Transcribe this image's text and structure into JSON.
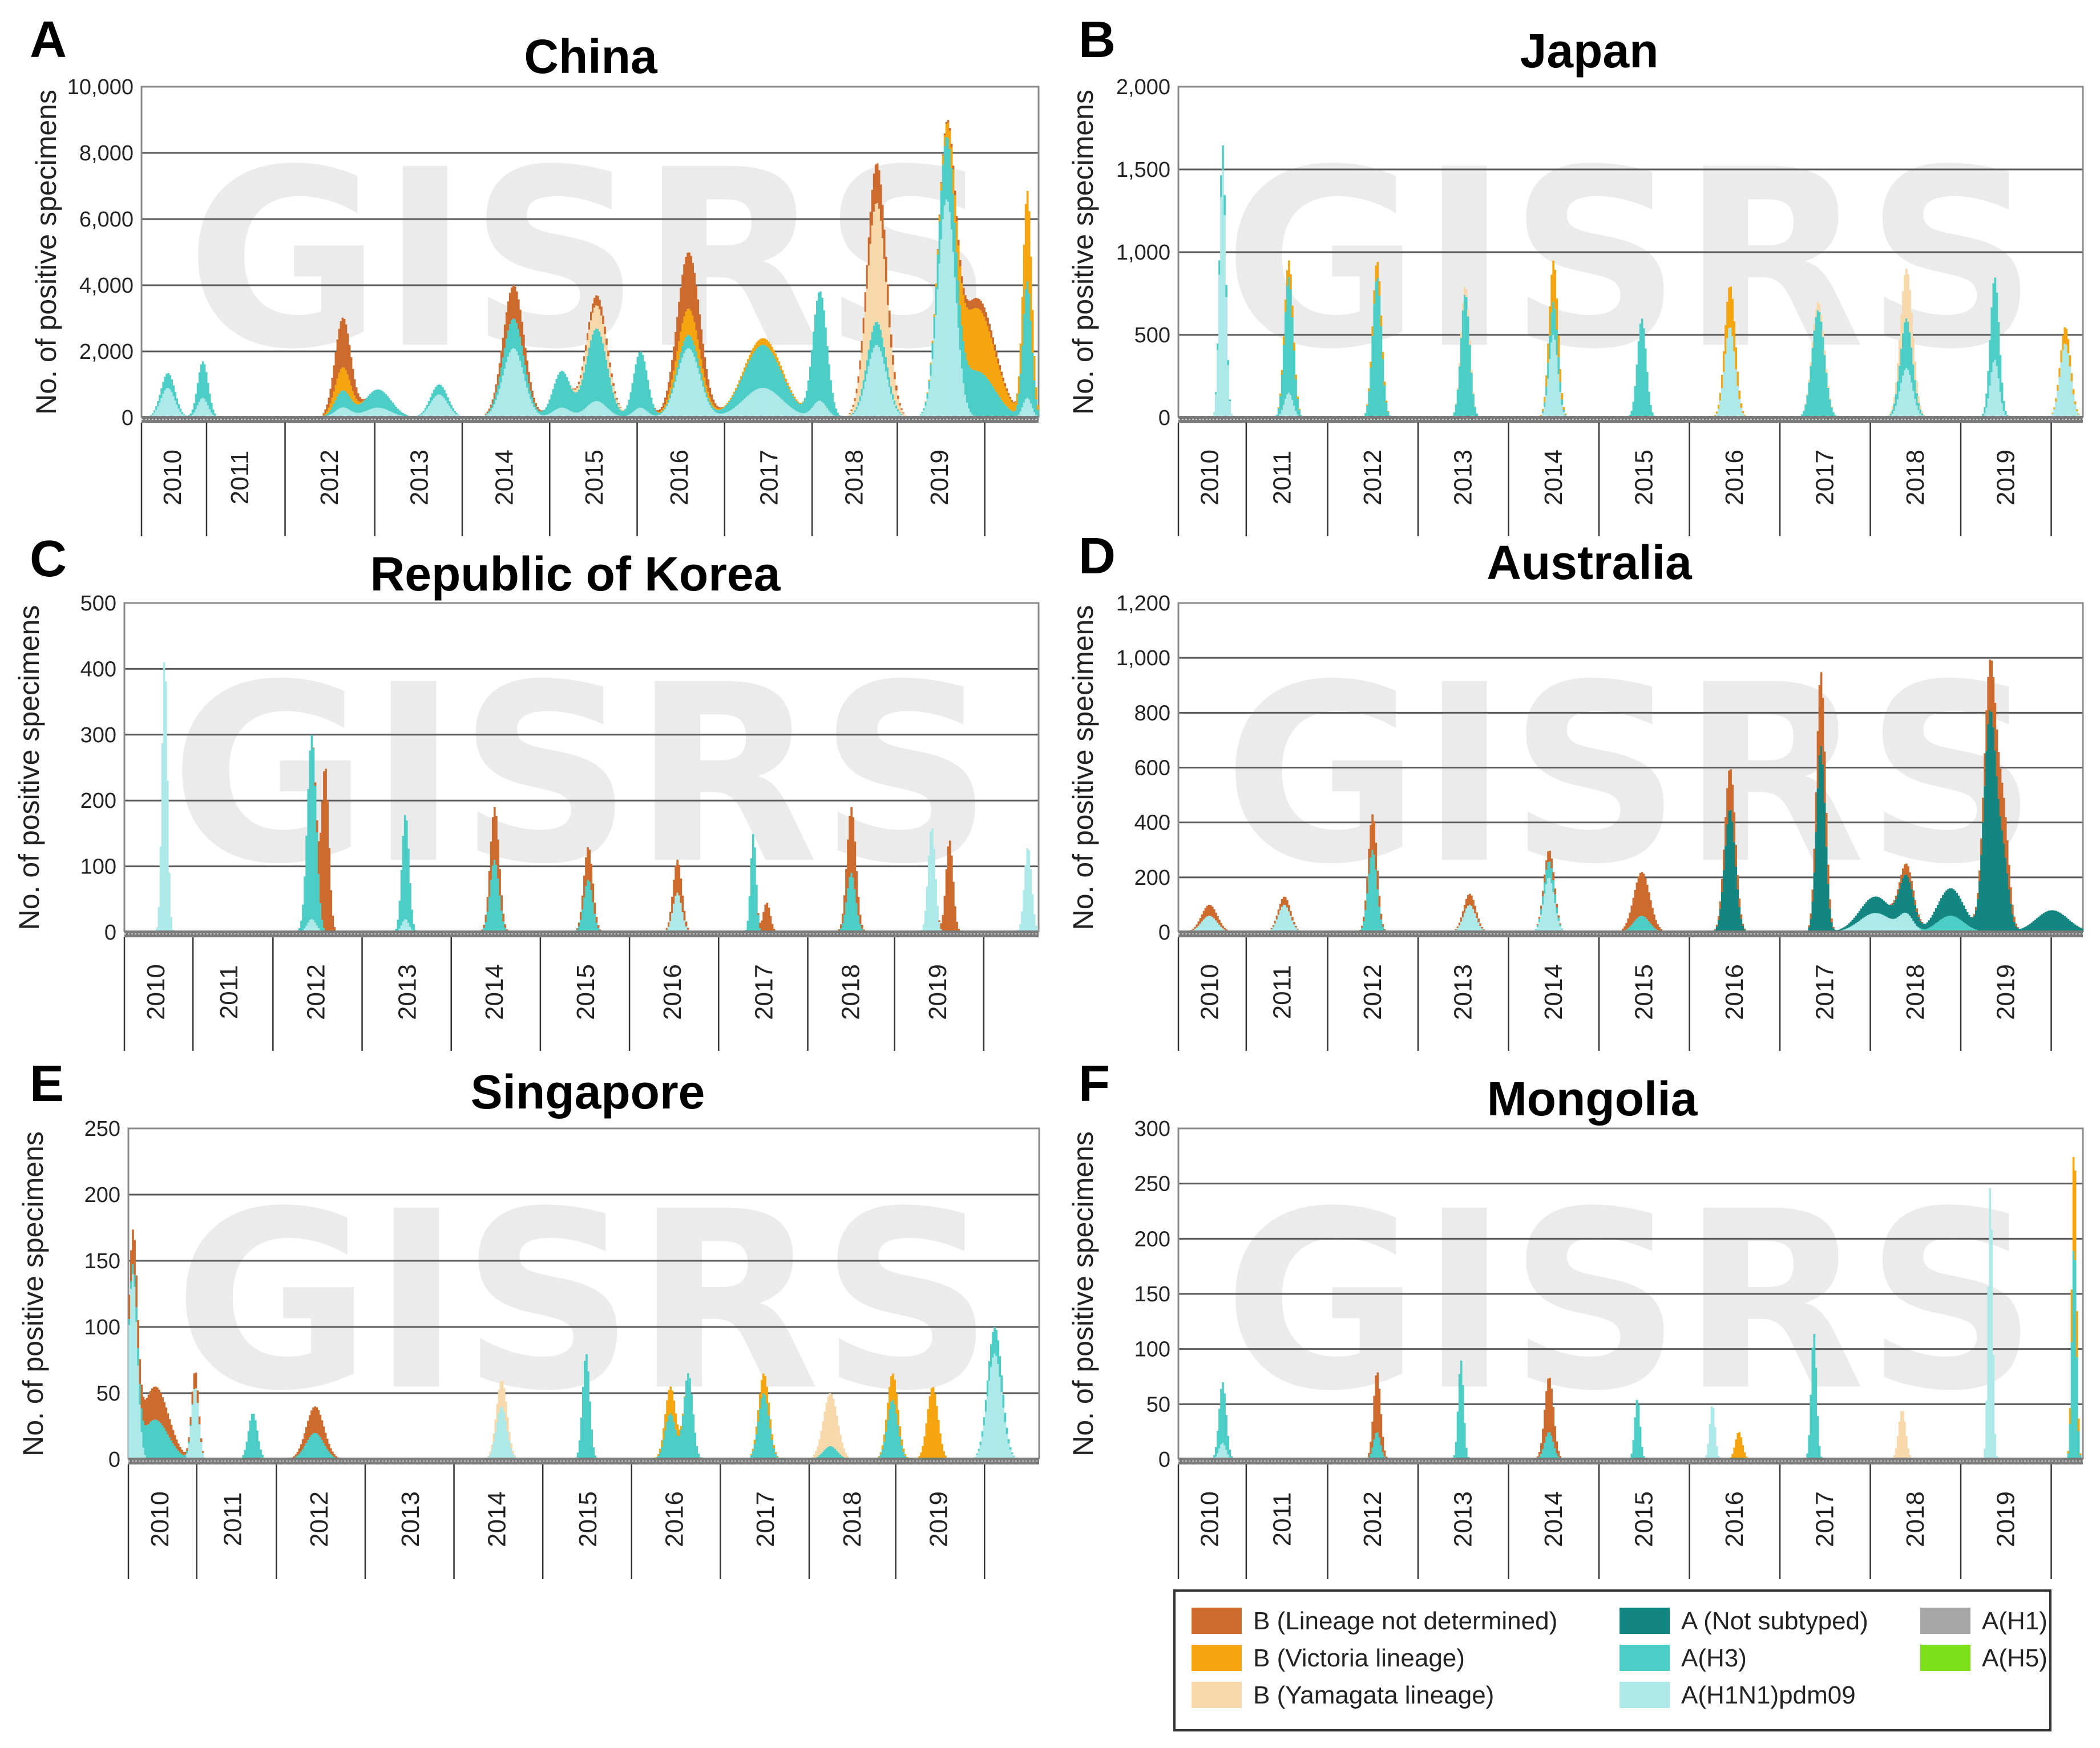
{
  "series_colors": {
    "B (Lineage not determined)": "#cd6a2d",
    "B (Victoria lineage)": "#f5a50f",
    "B (Yamagata lineage)": "#f8d9ac",
    "A (Not subtyped)": "#148682",
    "A(H3)": "#4ccdc6",
    "A(H1N1)pdm09": "#aee9ea",
    "A(H1)": "#a6a6a6",
    "A(H5)": "#7ee01a"
  },
  "legend": [
    {
      "label": "B (Lineage not determined)",
      "color": "#cd6a2d"
    },
    {
      "label": "B (Victoria lineage)",
      "color": "#f5a50f"
    },
    {
      "label": "B (Yamagata lineage)",
      "color": "#f8d9ac"
    },
    {
      "label": "A (Not subtyped)",
      "color": "#148682"
    },
    {
      "label": "A(H3)",
      "color": "#4ccdc6"
    },
    {
      "label": "A(H1N1)pdm09",
      "color": "#aee9ea"
    },
    {
      "label": "A(H1)",
      "color": "#a6a6a6"
    },
    {
      "label": "A(H5)",
      "color": "#7ee01a"
    }
  ],
  "chart_data": [
    {
      "panel": "A",
      "title": "China",
      "type": "area",
      "stacked": true,
      "ylabel": "No. of positive specimens",
      "ylim": [
        0,
        10000
      ],
      "yticks": [
        0,
        2000,
        4000,
        6000,
        8000,
        10000
      ],
      "ytick_labels": [
        "0",
        "2,000",
        "4,000",
        "6,000",
        "8,000",
        "10,000"
      ],
      "years": [
        "2010",
        "2011",
        "2012",
        "2013",
        "2014",
        "2015",
        "2016",
        "2017",
        "2018",
        "2019"
      ],
      "peaks": [
        {
          "t": 2010.1,
          "w": 0.08,
          "v": {
            "A(H1N1)pdm09": 900,
            "A(H3)": 450
          }
        },
        {
          "t": 2010.5,
          "w": 0.06,
          "v": {
            "A(H3)": 1100,
            "A(H1N1)pdm09": 600
          }
        },
        {
          "t": 2012.1,
          "w": 0.09,
          "v": {
            "B (Lineage not determined)": 1500,
            "B (Victoria lineage)": 700,
            "A(H3)": 500,
            "A(H1N1)pdm09": 300
          }
        },
        {
          "t": 2012.5,
          "w": 0.15,
          "v": {
            "A(H3)": 550,
            "A(H1N1)pdm09": 300
          }
        },
        {
          "t": 2013.2,
          "w": 0.1,
          "v": {
            "A(H1N1)pdm09": 700,
            "A(H3)": 300
          }
        },
        {
          "t": 2014.05,
          "w": 0.12,
          "v": {
            "A(H1N1)pdm09": 2100,
            "A(H3)": 900,
            "B (Lineage not determined)": 1000
          }
        },
        {
          "t": 2014.6,
          "w": 0.1,
          "v": {
            "A(H3)": 1100,
            "A(H1N1)pdm09": 300
          }
        },
        {
          "t": 2015.0,
          "w": 0.12,
          "v": {
            "A(H3)": 2200,
            "A(H1N1)pdm09": 500,
            "B (Yamagata lineage)": 700,
            "B (Lineage not determined)": 300
          }
        },
        {
          "t": 2015.5,
          "w": 0.08,
          "v": {
            "A(H3)": 1700,
            "A(H1N1)pdm09": 300
          }
        },
        {
          "t": 2016.05,
          "w": 0.13,
          "v": {
            "A(H1N1)pdm09": 2100,
            "A(H3)": 400,
            "B (Victoria lineage)": 800,
            "B (Lineage not determined)": 1700
          }
        },
        {
          "t": 2016.9,
          "w": 0.22,
          "v": {
            "A(H3)": 1300,
            "A(H1N1)pdm09": 900,
            "B (Victoria lineage)": 200
          }
        },
        {
          "t": 2017.55,
          "w": 0.08,
          "v": {
            "A(H3)": 3300,
            "A(H1N1)pdm09": 500
          }
        },
        {
          "t": 2018.2,
          "w": 0.11,
          "v": {
            "A(H1N1)pdm09": 2200,
            "A(H3)": 700,
            "B (Yamagata lineage)": 3600,
            "B (Lineage not determined)": 1200
          }
        },
        {
          "t": 2019.0,
          "w": 0.1,
          "v": {
            "A(H1N1)pdm09": 6600,
            "A(H3)": 1600
          }
        },
        {
          "t": 2019.35,
          "w": 0.2,
          "v": {
            "A(H3)": 1400,
            "B (Victoria lineage)": 1900,
            "B (Lineage not determined)": 300
          }
        },
        {
          "t": 2019.92,
          "w": 0.05,
          "v": {
            "A(H3)": 3500,
            "A(H1N1)pdm09": 600,
            "B (Victoria lineage)": 2700
          }
        }
      ]
    },
    {
      "panel": "B",
      "title": "Japan",
      "type": "area",
      "stacked": true,
      "ylabel": "No. of positive specimens",
      "ylim": [
        0,
        2000
      ],
      "yticks": [
        0,
        500,
        1000,
        1500,
        2000
      ],
      "ytick_labels": [
        "0",
        "500",
        "1,000",
        "1,500",
        "2,000"
      ],
      "years": [
        "2010",
        "2011",
        "2012",
        "2013",
        "2014",
        "2015",
        "2016",
        "2017",
        "2018",
        "2019"
      ],
      "peaks": [
        {
          "t": 2010.3,
          "w": 0.035,
          "v": {
            "A(H1N1)pdm09": 1500,
            "A(H3)": 150
          }
        },
        {
          "t": 2011.05,
          "w": 0.05,
          "v": {
            "A(H3)": 700,
            "A(H1N1)pdm09": 150,
            "B (Victoria lineage)": 100
          }
        },
        {
          "t": 2012.05,
          "w": 0.05,
          "v": {
            "A(H3)": 850,
            "B (Victoria lineage)": 100
          }
        },
        {
          "t": 2013.05,
          "w": 0.05,
          "v": {
            "A(H3)": 750,
            "B (Yamagata lineage)": 50
          }
        },
        {
          "t": 2014.05,
          "w": 0.05,
          "v": {
            "A(H1N1)pdm09": 500,
            "A(H3)": 200,
            "B (Victoria lineage)": 250
          }
        },
        {
          "t": 2015.05,
          "w": 0.05,
          "v": {
            "A(H3)": 600
          }
        },
        {
          "t": 2016.05,
          "w": 0.06,
          "v": {
            "A(H1N1)pdm09": 550,
            "B (Victoria lineage)": 250
          }
        },
        {
          "t": 2017.05,
          "w": 0.07,
          "v": {
            "A(H3)": 650,
            "B (Yamagata lineage)": 50
          }
        },
        {
          "t": 2018.05,
          "w": 0.07,
          "v": {
            "A(H1N1)pdm09": 300,
            "A(H3)": 300,
            "B (Yamagata lineage)": 300
          }
        },
        {
          "t": 2019.05,
          "w": 0.05,
          "v": {
            "A(H1N1)pdm09": 350,
            "A(H3)": 500
          }
        },
        {
          "t": 2019.85,
          "w": 0.06,
          "v": {
            "A(H1N1)pdm09": 450,
            "B (Victoria lineage)": 100
          }
        }
      ]
    },
    {
      "panel": "C",
      "title": "Republic of Korea",
      "type": "area",
      "stacked": true,
      "ylabel": "No. of positive specimens",
      "ylim": [
        0,
        500
      ],
      "yticks": [
        0,
        100,
        200,
        300,
        400,
        500
      ],
      "ytick_labels": [
        "0",
        "100",
        "200",
        "300",
        "400",
        "500"
      ],
      "years": [
        "2010",
        "2011",
        "2012",
        "2013",
        "2014",
        "2015",
        "2016",
        "2017",
        "2018",
        "2019"
      ],
      "peaks": [
        {
          "t": 2010.25,
          "w": 0.03,
          "v": {
            "A(H1N1)pdm09": 420
          }
        },
        {
          "t": 2011.9,
          "w": 0.05,
          "v": {
            "A(H3)": 280,
            "A(H1N1)pdm09": 20
          }
        },
        {
          "t": 2012.05,
          "w": 0.04,
          "v": {
            "B (Lineage not determined)": 250
          }
        },
        {
          "t": 2012.95,
          "w": 0.04,
          "v": {
            "A(H3)": 160,
            "A(H1N1)pdm09": 20
          }
        },
        {
          "t": 2013.95,
          "w": 0.05,
          "v": {
            "A(H3)": 110,
            "B (Lineage not determined)": 80
          }
        },
        {
          "t": 2015.0,
          "w": 0.05,
          "v": {
            "A(H3)": 80,
            "B (Lineage not determined)": 50
          }
        },
        {
          "t": 2016.0,
          "w": 0.05,
          "v": {
            "A(H1N1)pdm09": 60,
            "B (Lineage not determined)": 50
          }
        },
        {
          "t": 2016.85,
          "w": 0.03,
          "v": {
            "A(H3)": 150
          }
        },
        {
          "t": 2017.0,
          "w": 0.04,
          "v": {
            "B (Lineage not determined)": 45
          }
        },
        {
          "t": 2017.95,
          "w": 0.05,
          "v": {
            "A(H3)": 90,
            "B (Lineage not determined)": 100
          }
        },
        {
          "t": 2018.85,
          "w": 0.04,
          "v": {
            "A(H1N1)pdm09": 160
          }
        },
        {
          "t": 2019.05,
          "w": 0.04,
          "v": {
            "B (Lineage not determined)": 140
          }
        },
        {
          "t": 2019.93,
          "w": 0.04,
          "v": {
            "A(H1N1)pdm09": 130
          }
        }
      ]
    },
    {
      "panel": "D",
      "title": "Australia",
      "type": "area",
      "stacked": true,
      "ylabel": "No. of positive specimens",
      "ylim": [
        0,
        1200
      ],
      "yticks": [
        0,
        200,
        400,
        600,
        800,
        1000,
        1200
      ],
      "ytick_labels": [
        "0",
        "200",
        "400",
        "600",
        "800",
        "1,000",
        "1,200"
      ],
      "years": [
        "2010",
        "2011",
        "2012",
        "2013",
        "2014",
        "2015",
        "2016",
        "2017",
        "2018",
        "2019"
      ],
      "peaks": [
        {
          "t": 2010.15,
          "w": 0.09,
          "v": {
            "A(H1N1)pdm09": 60,
            "B (Lineage not determined)": 40
          }
        },
        {
          "t": 2011.0,
          "w": 0.07,
          "v": {
            "A(H1N1)pdm09": 100,
            "B (Lineage not determined)": 30
          }
        },
        {
          "t": 2012.0,
          "w": 0.05,
          "v": {
            "A(H3)": 300,
            "B (Lineage not determined)": 130
          }
        },
        {
          "t": 2013.1,
          "w": 0.07,
          "v": {
            "A(H1N1)pdm09": 100,
            "B (Lineage not determined)": 40
          }
        },
        {
          "t": 2014.0,
          "w": 0.06,
          "v": {
            "A(H1N1)pdm09": 200,
            "A(H3)": 60,
            "B (Lineage not determined)": 40
          }
        },
        {
          "t": 2015.05,
          "w": 0.09,
          "v": {
            "A(H3)": 60,
            "B (Lineage not determined)": 160
          }
        },
        {
          "t": 2016.05,
          "w": 0.06,
          "v": {
            "A (Not subtyped)": 450,
            "B (Lineage not determined)": 150
          }
        },
        {
          "t": 2017.08,
          "w": 0.05,
          "v": {
            "A (Not subtyped)": 680,
            "B (Lineage not determined)": 270
          }
        },
        {
          "t": 2017.7,
          "w": 0.18,
          "v": {
            "A (Not subtyped)": 60,
            "A(H1N1)pdm09": 70
          }
        },
        {
          "t": 2018.05,
          "w": 0.08,
          "v": {
            "A (Not subtyped)": 130,
            "A(H1N1)pdm09": 60,
            "B (Lineage not determined)": 40
          }
        },
        {
          "t": 2018.55,
          "w": 0.15,
          "v": {
            "A (Not subtyped)": 100,
            "A(H3)": 60
          }
        },
        {
          "t": 2019.0,
          "w": 0.07,
          "v": {
            "A (Not subtyped)": 800,
            "B (Lineage not determined)": 180
          }
        },
        {
          "t": 2019.15,
          "w": 0.06,
          "v": {
            "A (Not subtyped)": 250,
            "B (Lineage not determined)": 150
          }
        },
        {
          "t": 2019.7,
          "w": 0.18,
          "v": {
            "A (Not subtyped)": 80
          }
        }
      ]
    },
    {
      "panel": "E",
      "title": "Singapore",
      "type": "area",
      "stacked": true,
      "ylabel": "No. of positive specimens",
      "ylim": [
        0,
        250
      ],
      "yticks": [
        0,
        50,
        100,
        150,
        200,
        250
      ],
      "ytick_labels": [
        "0",
        "50",
        "100",
        "150",
        "200",
        "250"
      ],
      "years": [
        "2010",
        "2011",
        "2012",
        "2013",
        "2014",
        "2015",
        "2016",
        "2017",
        "2018",
        "2019"
      ],
      "peaks": [
        {
          "t": 2009.85,
          "w": 0.05,
          "v": {
            "A(H1N1)pdm09": 140,
            "B (Lineage not determined)": 20
          }
        },
        {
          "t": 2010.1,
          "w": 0.15,
          "v": {
            "A(H3)": 30,
            "B (Lineage not determined)": 25
          }
        },
        {
          "t": 2010.55,
          "w": 0.04,
          "v": {
            "A(H1N1)pdm09": 55,
            "B (Lineage not determined)": 12
          }
        },
        {
          "t": 2011.2,
          "w": 0.05,
          "v": {
            "A(H3)": 35
          }
        },
        {
          "t": 2011.9,
          "w": 0.1,
          "v": {
            "A(H3)": 20,
            "B (Lineage not determined)": 20
          }
        },
        {
          "t": 2014.0,
          "w": 0.06,
          "v": {
            "A(H1N1)pdm09": 40,
            "B (Yamagata lineage)": 20
          }
        },
        {
          "t": 2014.95,
          "w": 0.04,
          "v": {
            "A(H3)": 80
          }
        },
        {
          "t": 2015.9,
          "w": 0.06,
          "v": {
            "A(H3)": 35,
            "B (Victoria lineage)": 20
          }
        },
        {
          "t": 2016.1,
          "w": 0.05,
          "v": {
            "A(H3)": 65
          }
        },
        {
          "t": 2016.95,
          "w": 0.06,
          "v": {
            "A(H3)": 50,
            "B (Victoria lineage)": 15
          }
        },
        {
          "t": 2017.7,
          "w": 0.08,
          "v": {
            "B (Yamagata lineage)": 40,
            "A(H3)": 10
          }
        },
        {
          "t": 2018.4,
          "w": 0.06,
          "v": {
            "A(H3)": 45,
            "B (Victoria lineage)": 20
          }
        },
        {
          "t": 2018.85,
          "w": 0.06,
          "v": {
            "B (Victoria lineage)": 55
          }
        },
        {
          "t": 2019.55,
          "w": 0.08,
          "v": {
            "A(H1N1)pdm09": 80,
            "A(H3)": 20
          }
        }
      ]
    },
    {
      "panel": "F",
      "title": "Mongolia",
      "type": "area",
      "stacked": true,
      "ylabel": "No. of positive specimens",
      "ylim": [
        0,
        300
      ],
      "yticks": [
        0,
        50,
        100,
        150,
        200,
        250,
        300
      ],
      "ytick_labels": [
        "0",
        "50",
        "100",
        "150",
        "200",
        "250",
        "300"
      ],
      "years": [
        "2010",
        "2011",
        "2012",
        "2013",
        "2014",
        "2015",
        "2016",
        "2017",
        "2018",
        "2019"
      ],
      "peaks": [
        {
          "t": 2010.3,
          "w": 0.04,
          "v": {
            "A(H3)": 55,
            "A(H1N1)pdm09": 15
          }
        },
        {
          "t": 2012.05,
          "w": 0.04,
          "v": {
            "B (Lineage not determined)": 55,
            "A(H3)": 25
          }
        },
        {
          "t": 2013.0,
          "w": 0.03,
          "v": {
            "A(H3)": 90
          }
        },
        {
          "t": 2014.0,
          "w": 0.05,
          "v": {
            "B (Lineage not determined)": 50,
            "A(H3)": 25
          }
        },
        {
          "t": 2015.0,
          "w": 0.03,
          "v": {
            "A(H3)": 55
          }
        },
        {
          "t": 2015.85,
          "w": 0.03,
          "v": {
            "A(H1N1)pdm09": 50
          }
        },
        {
          "t": 2016.15,
          "w": 0.04,
          "v": {
            "B (Victoria lineage)": 25
          }
        },
        {
          "t": 2017.0,
          "w": 0.03,
          "v": {
            "A(H3)": 115
          }
        },
        {
          "t": 2018.0,
          "w": 0.04,
          "v": {
            "B (Yamagata lineage)": 45
          }
        },
        {
          "t": 2019.0,
          "w": 0.025,
          "v": {
            "A(H1N1)pdm09": 250
          }
        },
        {
          "t": 2019.95,
          "w": 0.025,
          "v": {
            "A(H3)": 200,
            "B (Victoria lineage)": 90
          }
        }
      ]
    }
  ],
  "watermark": "GISRS"
}
